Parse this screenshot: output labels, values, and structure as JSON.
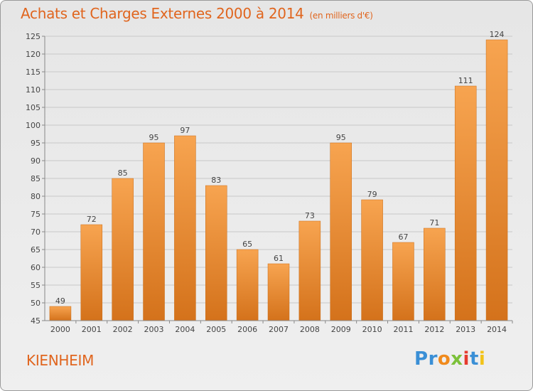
{
  "chart_data": {
    "type": "bar",
    "title": "Achats et Charges Externes 2000 à 2014",
    "subtitle": "(en milliers d'€)",
    "categories": [
      "2000",
      "2001",
      "2002",
      "2003",
      "2004",
      "2005",
      "2006",
      "2007",
      "2008",
      "2009",
      "2010",
      "2011",
      "2012",
      "2013",
      "2014"
    ],
    "values": [
      49,
      72,
      85,
      95,
      97,
      83,
      65,
      61,
      73,
      95,
      79,
      67,
      71,
      111,
      124
    ],
    "ylim": [
      45,
      125
    ],
    "yticks": [
      45,
      50,
      55,
      60,
      65,
      70,
      75,
      80,
      85,
      90,
      95,
      100,
      105,
      110,
      115,
      120,
      125
    ],
    "grid": true,
    "data_labels": true,
    "bar_color_top": "#f7a450",
    "bar_color_bottom": "#d4721b"
  },
  "footer": {
    "commune": "KIENHEIM",
    "brand_letters": [
      {
        "ch": "P",
        "color": "#3a8fd6"
      },
      {
        "ch": "r",
        "color": "#3a8fd6"
      },
      {
        "ch": "o",
        "color": "#f08a1c"
      },
      {
        "ch": "x",
        "color": "#7cc13a"
      },
      {
        "ch": "i",
        "color": "#e53b2f"
      },
      {
        "ch": "t",
        "color": "#3a8fd6"
      },
      {
        "ch": "i",
        "color": "#f2c319"
      }
    ]
  }
}
